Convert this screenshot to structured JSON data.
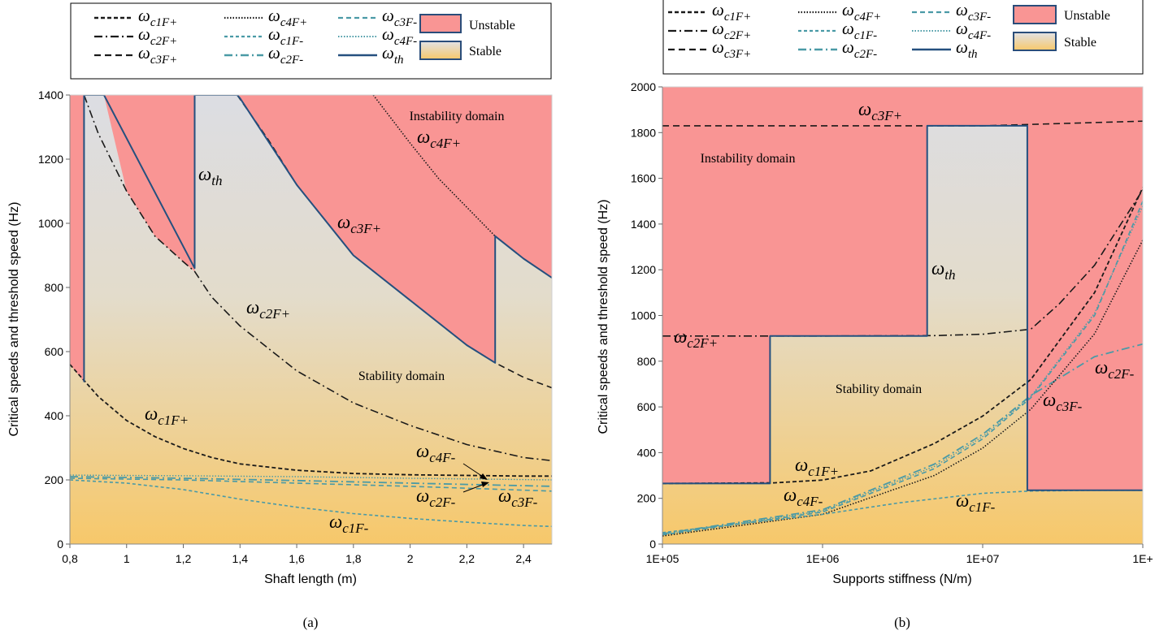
{
  "chart_data": [
    {
      "type": "line",
      "panel_label": "(a)",
      "xlabel": "Shaft length (m)",
      "ylabel": "Critical speeds and threshold speed (Hz)",
      "xlim": [
        0.8,
        2.5
      ],
      "ylim": [
        0,
        1400
      ],
      "x_ticks": [
        "0,8",
        "1",
        "1,2",
        "1,4",
        "1,6",
        "1,8",
        "2",
        "2,2",
        "2,4"
      ],
      "y_ticks": [
        "0",
        "200",
        "400",
        "600",
        "800",
        "1000",
        "1200",
        "1400"
      ],
      "grid": false,
      "legend_position": "top",
      "legend": {
        "curves": [
          {
            "sym": "ω",
            "sub": "c1F+",
            "style": "dashed"
          },
          {
            "sym": "ω",
            "sub": "c4F+",
            "style": "dotted"
          },
          {
            "sym": "ω",
            "sub": "c3F-",
            "style": "dashed-teal"
          },
          {
            "sym": "ω",
            "sub": "c2F+",
            "style": "dashdot"
          },
          {
            "sym": "ω",
            "sub": "c1F-",
            "style": "dashed-teal-fine"
          },
          {
            "sym": "ω",
            "sub": "c4F-",
            "style": "dotted-teal"
          },
          {
            "sym": "ω",
            "sub": "c3F+",
            "style": "dashed-long"
          },
          {
            "sym": "ω",
            "sub": "c2F-",
            "style": "dashdot-teal"
          },
          {
            "sym": "ω",
            "sub": "th",
            "style": "solid-blue"
          }
        ],
        "domains": [
          "Unstable",
          "Stable"
        ]
      },
      "region_labels": [
        "Instability domain",
        "Stability domain"
      ],
      "curve_labels": [
        {
          "sym": "ω",
          "sub": "th"
        },
        {
          "sym": "ω",
          "sub": "c4F+"
        },
        {
          "sym": "ω",
          "sub": "c3F+"
        },
        {
          "sym": "ω",
          "sub": "c2F+"
        },
        {
          "sym": "ω",
          "sub": "c1F+"
        },
        {
          "sym": "ω",
          "sub": "c4F-"
        },
        {
          "sym": "ω",
          "sub": "c2F-"
        },
        {
          "sym": "ω",
          "sub": "c3F-"
        },
        {
          "sym": "ω",
          "sub": "c1F-"
        }
      ],
      "series": [
        {
          "name": "ωc1F+",
          "x": [
            0.8,
            0.9,
            1.0,
            1.1,
            1.2,
            1.3,
            1.4,
            1.6,
            1.8,
            2.0,
            2.2,
            2.4,
            2.5
          ],
          "values": [
            560,
            460,
            385,
            335,
            298,
            270,
            250,
            230,
            220,
            216,
            214,
            212,
            212
          ]
        },
        {
          "name": "ωc2F+",
          "x": [
            0.85,
            0.9,
            1.0,
            1.1,
            1.2,
            1.24,
            1.3,
            1.4,
            1.6,
            1.8,
            2.0,
            2.2,
            2.4,
            2.5
          ],
          "values": [
            1400,
            1280,
            1100,
            960,
            880,
            850,
            770,
            680,
            540,
            440,
            370,
            310,
            270,
            260
          ]
        },
        {
          "name": "ωc3F+",
          "x": [
            1.39,
            1.5,
            1.6,
            1.8,
            2.0,
            2.2,
            2.3,
            2.4,
            2.5
          ],
          "values": [
            1400,
            1260,
            1120,
            900,
            760,
            620,
            565,
            520,
            487
          ]
        },
        {
          "name": "ωc4F+",
          "x": [
            1.87,
            2.0,
            2.1,
            2.2,
            2.3,
            2.4,
            2.5
          ],
          "values": [
            1400,
            1250,
            1140,
            1050,
            960,
            890,
            830
          ]
        },
        {
          "name": "ωc4F-",
          "x": [
            0.8,
            1.2,
            1.6,
            2.0,
            2.5
          ],
          "values": [
            215,
            213,
            210,
            205,
            200
          ]
        },
        {
          "name": "ωc3F-",
          "x": [
            0.8,
            1.2,
            1.6,
            2.0,
            2.5
          ],
          "values": [
            205,
            200,
            190,
            180,
            165
          ]
        },
        {
          "name": "ωc2F-",
          "x": [
            0.8,
            1.2,
            1.6,
            2.0,
            2.5
          ],
          "values": [
            210,
            205,
            198,
            190,
            180
          ]
        },
        {
          "name": "ωc1F-",
          "x": [
            0.8,
            1.0,
            1.2,
            1.4,
            1.6,
            1.8,
            2.0,
            2.2,
            2.4,
            2.5
          ],
          "values": [
            200,
            190,
            170,
            140,
            115,
            95,
            80,
            68,
            58,
            55
          ]
        },
        {
          "name": "ωth",
          "x": [
            0.85,
            0.85,
            0.92,
            1.24,
            1.24,
            1.39,
            1.4,
            1.6,
            1.8,
            2.0,
            2.2,
            2.3,
            2.3,
            2.4,
            2.5
          ],
          "values": [
            505,
            1400,
            1400,
            860,
            1400,
            1400,
            1390,
            1120,
            900,
            760,
            620,
            565,
            960,
            890,
            830
          ]
        }
      ]
    },
    {
      "type": "line",
      "panel_label": "(b)",
      "xlabel": "Supports stiffness (N/m)",
      "ylabel": "Critical speeds and threshold speed (Hz)",
      "xscale": "log",
      "xlim": [
        100000,
        100000000
      ],
      "ylim": [
        0,
        2000
      ],
      "x_ticks": [
        "1E+05",
        "1E+06",
        "1E+07",
        "1E+"
      ],
      "y_ticks": [
        "0",
        "200",
        "400",
        "600",
        "800",
        "1000",
        "1200",
        "1400",
        "1600",
        "1800",
        "2000"
      ],
      "grid": false,
      "legend_position": "top",
      "legend": {
        "curves": [
          {
            "sym": "ω",
            "sub": "c1F+",
            "style": "dashed"
          },
          {
            "sym": "ω",
            "sub": "c4F+",
            "style": "dotted"
          },
          {
            "sym": "ω",
            "sub": "c3F-",
            "style": "dashed-teal"
          },
          {
            "sym": "ω",
            "sub": "c2F+",
            "style": "dashdot"
          },
          {
            "sym": "ω",
            "sub": "c1F-",
            "style": "dashed-teal-fine"
          },
          {
            "sym": "ω",
            "sub": "c4F-",
            "style": "dotted-teal"
          },
          {
            "sym": "ω",
            "sub": "c3F+",
            "style": "dashed-long"
          },
          {
            "sym": "ω",
            "sub": "c2F-",
            "style": "dashdot-teal"
          },
          {
            "sym": "ω",
            "sub": "th",
            "style": "solid-blue"
          }
        ],
        "domains": [
          "Unstable",
          "Stable"
        ]
      },
      "region_labels": [
        "Instability domain",
        "Stability domain"
      ],
      "curve_labels": [
        {
          "sym": "ω",
          "sub": "c3F+"
        },
        {
          "sym": "ω",
          "sub": "th"
        },
        {
          "sym": "ω",
          "sub": "c2F+"
        },
        {
          "sym": "ω",
          "sub": "c2F-"
        },
        {
          "sym": "ω",
          "sub": "c3F-"
        },
        {
          "sym": "ω",
          "sub": "c1F+"
        },
        {
          "sym": "ω",
          "sub": "c4F-"
        },
        {
          "sym": "ω",
          "sub": "c1F-"
        }
      ],
      "series": [
        {
          "name": "ωc3F+",
          "x": [
            100000,
            1000000,
            10000000,
            100000000
          ],
          "values": [
            1830,
            1830,
            1830,
            1850
          ]
        },
        {
          "name": "ωc2F+",
          "x": [
            100000,
            1000000,
            5000000,
            10000000,
            20000000,
            30000000,
            50000000,
            100000000
          ],
          "values": [
            910,
            910,
            912,
            918,
            940,
            1050,
            1220,
            1550
          ]
        },
        {
          "name": "ωc1F+",
          "x": [
            100000,
            500000,
            1000000,
            2000000,
            5000000,
            10000000,
            20000000,
            50000000,
            100000000
          ],
          "values": [
            265,
            268,
            280,
            320,
            440,
            560,
            720,
            1100,
            1560
          ]
        },
        {
          "name": "ωc2F-",
          "x": [
            100000,
            1000000,
            5000000,
            10000000,
            20000000,
            50000000,
            100000000
          ],
          "values": [
            45,
            150,
            350,
            480,
            650,
            820,
            875
          ]
        },
        {
          "name": "ωc3F-",
          "x": [
            100000,
            1000000,
            5000000,
            10000000,
            20000000,
            50000000,
            100000000
          ],
          "values": [
            40,
            140,
            330,
            460,
            640,
            1000,
            1500
          ]
        },
        {
          "name": "ωc4F+",
          "x": [
            100000,
            1000000,
            5000000,
            10000000,
            20000000,
            50000000,
            100000000
          ],
          "values": [
            35,
            130,
            300,
            420,
            590,
            920,
            1330
          ]
        },
        {
          "name": "ωc4F-",
          "x": [
            100000,
            1000000,
            5000000,
            10000000,
            20000000,
            50000000,
            100000000
          ],
          "values": [
            42,
            145,
            340,
            470,
            645,
            1010,
            1480
          ]
        },
        {
          "name": "ωc1F-",
          "x": [
            100000,
            1000000,
            3000000,
            10000000,
            20000000,
            50000000,
            100000000
          ],
          "values": [
            50,
            130,
            180,
            222,
            232,
            235,
            235
          ]
        },
        {
          "name": "ωth",
          "x": [
            100000,
            470000,
            470000,
            4500000,
            4500000,
            19000000,
            19000000,
            100000000
          ],
          "values": [
            265,
            265,
            910,
            910,
            1830,
            1830,
            235,
            235
          ]
        }
      ]
    }
  ]
}
